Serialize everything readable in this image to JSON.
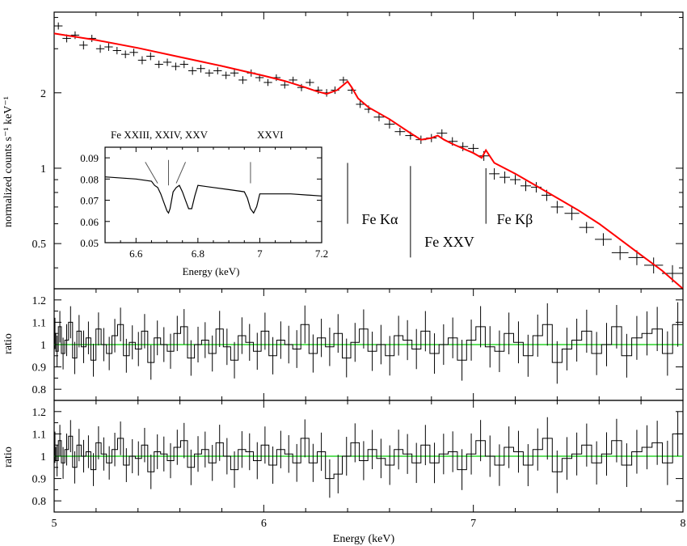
{
  "colors": {
    "model": "#ff0000",
    "unity": "#00cc00",
    "data": "#000000"
  },
  "chart_data": [
    {
      "type": "line",
      "panel": "spectrum",
      "ylabel": "normalized counts s⁻¹ keV⁻¹",
      "xlim": [
        5,
        8
      ],
      "ylim": [
        0.33,
        4.2
      ],
      "yscale": "log",
      "yticks": [
        0.5,
        1,
        2
      ],
      "ytick_labels": [
        "0.5",
        "1",
        "2"
      ],
      "model_x": [
        5.0,
        5.2,
        5.4,
        5.6,
        5.8,
        6.0,
        6.1,
        6.2,
        6.25,
        6.3,
        6.35,
        6.38,
        6.4,
        6.42,
        6.45,
        6.5,
        6.6,
        6.7,
        6.75,
        6.8,
        6.83,
        6.86,
        6.9,
        7.0,
        7.04,
        7.06,
        7.1,
        7.2,
        7.3,
        7.4,
        7.5,
        7.6,
        7.7,
        7.8,
        7.9,
        8.0
      ],
      "model_y": [
        3.45,
        3.25,
        3.02,
        2.78,
        2.56,
        2.34,
        2.23,
        2.1,
        2.03,
        1.98,
        2.05,
        2.15,
        2.22,
        2.1,
        1.9,
        1.75,
        1.57,
        1.38,
        1.3,
        1.32,
        1.35,
        1.3,
        1.25,
        1.15,
        1.1,
        1.18,
        1.05,
        0.95,
        0.85,
        0.76,
        0.68,
        0.6,
        0.52,
        0.45,
        0.39,
        0.33
      ],
      "data_x": [
        5.02,
        5.06,
        5.1,
        5.14,
        5.18,
        5.22,
        5.26,
        5.3,
        5.34,
        5.38,
        5.42,
        5.46,
        5.5,
        5.54,
        5.58,
        5.62,
        5.66,
        5.7,
        5.74,
        5.78,
        5.82,
        5.86,
        5.9,
        5.94,
        5.98,
        6.02,
        6.06,
        6.1,
        6.14,
        6.18,
        6.22,
        6.26,
        6.3,
        6.34,
        6.38,
        6.42,
        6.46,
        6.5,
        6.55,
        6.6,
        6.65,
        6.7,
        6.75,
        6.8,
        6.85,
        6.9,
        6.95,
        7.0,
        7.05,
        7.1,
        7.15,
        7.2,
        7.25,
        7.3,
        7.35,
        7.4,
        7.47,
        7.54,
        7.62,
        7.7,
        7.78,
        7.86,
        7.95
      ],
      "data_y": [
        3.7,
        3.3,
        3.4,
        3.1,
        3.3,
        3.0,
        3.05,
        2.95,
        2.85,
        2.9,
        2.7,
        2.8,
        2.6,
        2.65,
        2.55,
        2.6,
        2.45,
        2.5,
        2.4,
        2.45,
        2.35,
        2.4,
        2.25,
        2.4,
        2.3,
        2.2,
        2.3,
        2.15,
        2.25,
        2.1,
        2.2,
        2.05,
        2.0,
        2.05,
        2.25,
        2.05,
        1.8,
        1.72,
        1.6,
        1.5,
        1.4,
        1.35,
        1.3,
        1.32,
        1.38,
        1.28,
        1.22,
        1.2,
        1.12,
        0.95,
        0.92,
        0.9,
        0.85,
        0.84,
        0.78,
        0.7,
        0.66,
        0.58,
        0.52,
        0.46,
        0.44,
        0.41,
        0.38
      ],
      "data_err": [
        0.12,
        0.12,
        0.12,
        0.12,
        0.11,
        0.11,
        0.11,
        0.1,
        0.1,
        0.1,
        0.1,
        0.1,
        0.09,
        0.09,
        0.09,
        0.09,
        0.09,
        0.09,
        0.08,
        0.08,
        0.08,
        0.08,
        0.08,
        0.08,
        0.08,
        0.07,
        0.07,
        0.07,
        0.07,
        0.07,
        0.07,
        0.07,
        0.07,
        0.07,
        0.07,
        0.07,
        0.06,
        0.06,
        0.06,
        0.06,
        0.05,
        0.05,
        0.05,
        0.05,
        0.05,
        0.05,
        0.05,
        0.05,
        0.05,
        0.05,
        0.05,
        0.04,
        0.04,
        0.04,
        0.04,
        0.04,
        0.04,
        0.03,
        0.03,
        0.03,
        0.03,
        0.03,
        0.03
      ],
      "data_xerr": [
        0.02,
        0.02,
        0.02,
        0.02,
        0.02,
        0.02,
        0.02,
        0.02,
        0.02,
        0.02,
        0.02,
        0.02,
        0.02,
        0.02,
        0.02,
        0.02,
        0.02,
        0.02,
        0.02,
        0.02,
        0.02,
        0.02,
        0.02,
        0.02,
        0.02,
        0.02,
        0.02,
        0.02,
        0.02,
        0.02,
        0.02,
        0.02,
        0.02,
        0.02,
        0.02,
        0.02,
        0.02,
        0.02,
        0.025,
        0.025,
        0.025,
        0.025,
        0.025,
        0.025,
        0.025,
        0.025,
        0.025,
        0.025,
        0.025,
        0.025,
        0.025,
        0.025,
        0.025,
        0.025,
        0.025,
        0.03,
        0.035,
        0.035,
        0.04,
        0.04,
        0.04,
        0.045,
        0.05
      ],
      "annotations": [
        {
          "label": "Fe Kα",
          "x": 6.4
        },
        {
          "label": "Fe XXV",
          "x": 6.7
        },
        {
          "label": "Fe Kβ",
          "x": 7.06
        }
      ]
    },
    {
      "type": "line",
      "panel": "inset",
      "xlabel": "Energy (keV)",
      "xlim": [
        6.5,
        7.2
      ],
      "ylim": [
        0.05,
        0.095
      ],
      "xticks": [
        6.6,
        6.8,
        7,
        7.2
      ],
      "xtick_labels": [
        "6.6",
        "6.8",
        "7",
        "7.2"
      ],
      "yticks": [
        0.05,
        0.06,
        0.07,
        0.08,
        0.09
      ],
      "ytick_labels": [
        "0.05",
        "0.06",
        "0.07",
        "0.08",
        "0.09"
      ],
      "ion_labels": [
        "Fe XXIII, XXIV, XXV",
        "XXVI"
      ],
      "line_marker_x": [
        6.67,
        6.7,
        6.73,
        6.97
      ],
      "x": [
        6.5,
        6.6,
        6.65,
        6.66,
        6.67,
        6.68,
        6.69,
        6.7,
        6.705,
        6.71,
        6.72,
        6.73,
        6.74,
        6.75,
        6.76,
        6.77,
        6.78,
        6.79,
        6.8,
        6.85,
        6.9,
        6.95,
        6.96,
        6.97,
        6.98,
        6.99,
        7.0,
        7.1,
        7.2
      ],
      "y": [
        0.081,
        0.08,
        0.079,
        0.077,
        0.076,
        0.073,
        0.069,
        0.065,
        0.064,
        0.066,
        0.074,
        0.076,
        0.077,
        0.074,
        0.07,
        0.066,
        0.066,
        0.072,
        0.077,
        0.076,
        0.075,
        0.074,
        0.071,
        0.066,
        0.064,
        0.067,
        0.073,
        0.073,
        0.072
      ]
    },
    {
      "type": "line",
      "panel": "ratio-1",
      "ylabel": "ratio",
      "xlim": [
        5,
        8
      ],
      "ylim": [
        0.75,
        1.25
      ],
      "yticks": [
        0.8,
        0.9,
        1,
        1.1,
        1.2
      ],
      "ytick_labels": [
        "0.8",
        "0.9",
        "1",
        "1.1",
        "1.2"
      ],
      "values": [
        1.05,
        0.97,
        1.08,
        0.96,
        1.02,
        1.1,
        0.94,
        1.06,
        0.99,
        1.03,
        0.93,
        1.07,
        1.0,
        0.96,
        1.04,
        1.09,
        0.95,
        1.01,
        0.98,
        1.06,
        0.92,
        1.03,
        1.0,
        0.97,
        1.05,
        1.08,
        0.94,
        1.0,
        1.02,
        0.96,
        1.07,
        0.99,
        0.93,
        1.04,
        1.01,
        0.97,
        1.06,
        0.95,
        1.02,
        1.0,
        0.98,
        1.09,
        0.96,
        1.03,
        0.99,
        1.05,
        0.94,
        1.01,
        1.07,
        0.97,
        1.0,
        0.95,
        1.04,
        1.02,
        0.98,
        1.06,
        0.96,
        1.0,
        1.03,
        0.93,
        1.02,
        1.08,
        0.99,
        0.97,
        1.05,
        1.01,
        0.95,
        1.04,
        1.09,
        0.92,
        0.98,
        1.02,
        1.06,
        0.96,
        1.0,
        1.08,
        0.95,
        1.03,
        1.05,
        1.07,
        0.96,
        1.09
      ],
      "unity": 1
    },
    {
      "type": "line",
      "panel": "ratio-2",
      "ylabel": "ratio",
      "xlabel": "Energy (keV)",
      "xlim": [
        5,
        8
      ],
      "ylim": [
        0.75,
        1.25
      ],
      "xticks": [
        5,
        6,
        7,
        8
      ],
      "xtick_labels": [
        "5",
        "6",
        "7",
        "8"
      ],
      "yticks": [
        0.8,
        0.9,
        1,
        1.1,
        1.2
      ],
      "ytick_labels": [
        "0.8",
        "0.9",
        "1",
        "1.1",
        "1.2"
      ],
      "values": [
        1.04,
        0.98,
        1.07,
        0.97,
        1.03,
        1.09,
        0.95,
        1.05,
        1.0,
        1.02,
        0.94,
        1.06,
        1.01,
        0.97,
        1.03,
        1.08,
        0.96,
        1.0,
        0.99,
        1.05,
        0.93,
        1.02,
        1.01,
        0.98,
        1.04,
        1.07,
        0.95,
        1.01,
        1.03,
        0.97,
        1.06,
        1.0,
        0.94,
        1.03,
        1.02,
        0.98,
        1.05,
        0.96,
        1.03,
        1.01,
        0.97,
        1.08,
        0.97,
        1.02,
        0.9,
        0.92,
        1.0,
        1.06,
        0.98,
        1.03,
        0.99,
        0.96,
        1.03,
        1.01,
        0.97,
        1.05,
        0.97,
        1.01,
        1.02,
        0.94,
        1.01,
        1.07,
        1.0,
        0.96,
        1.04,
        1.02,
        0.96,
        1.03,
        1.08,
        0.93,
        0.99,
        1.01,
        1.05,
        0.97,
        1.01,
        1.07,
        0.96,
        1.02,
        1.04,
        1.06,
        0.97,
        1.1
      ],
      "unity": 1
    }
  ]
}
